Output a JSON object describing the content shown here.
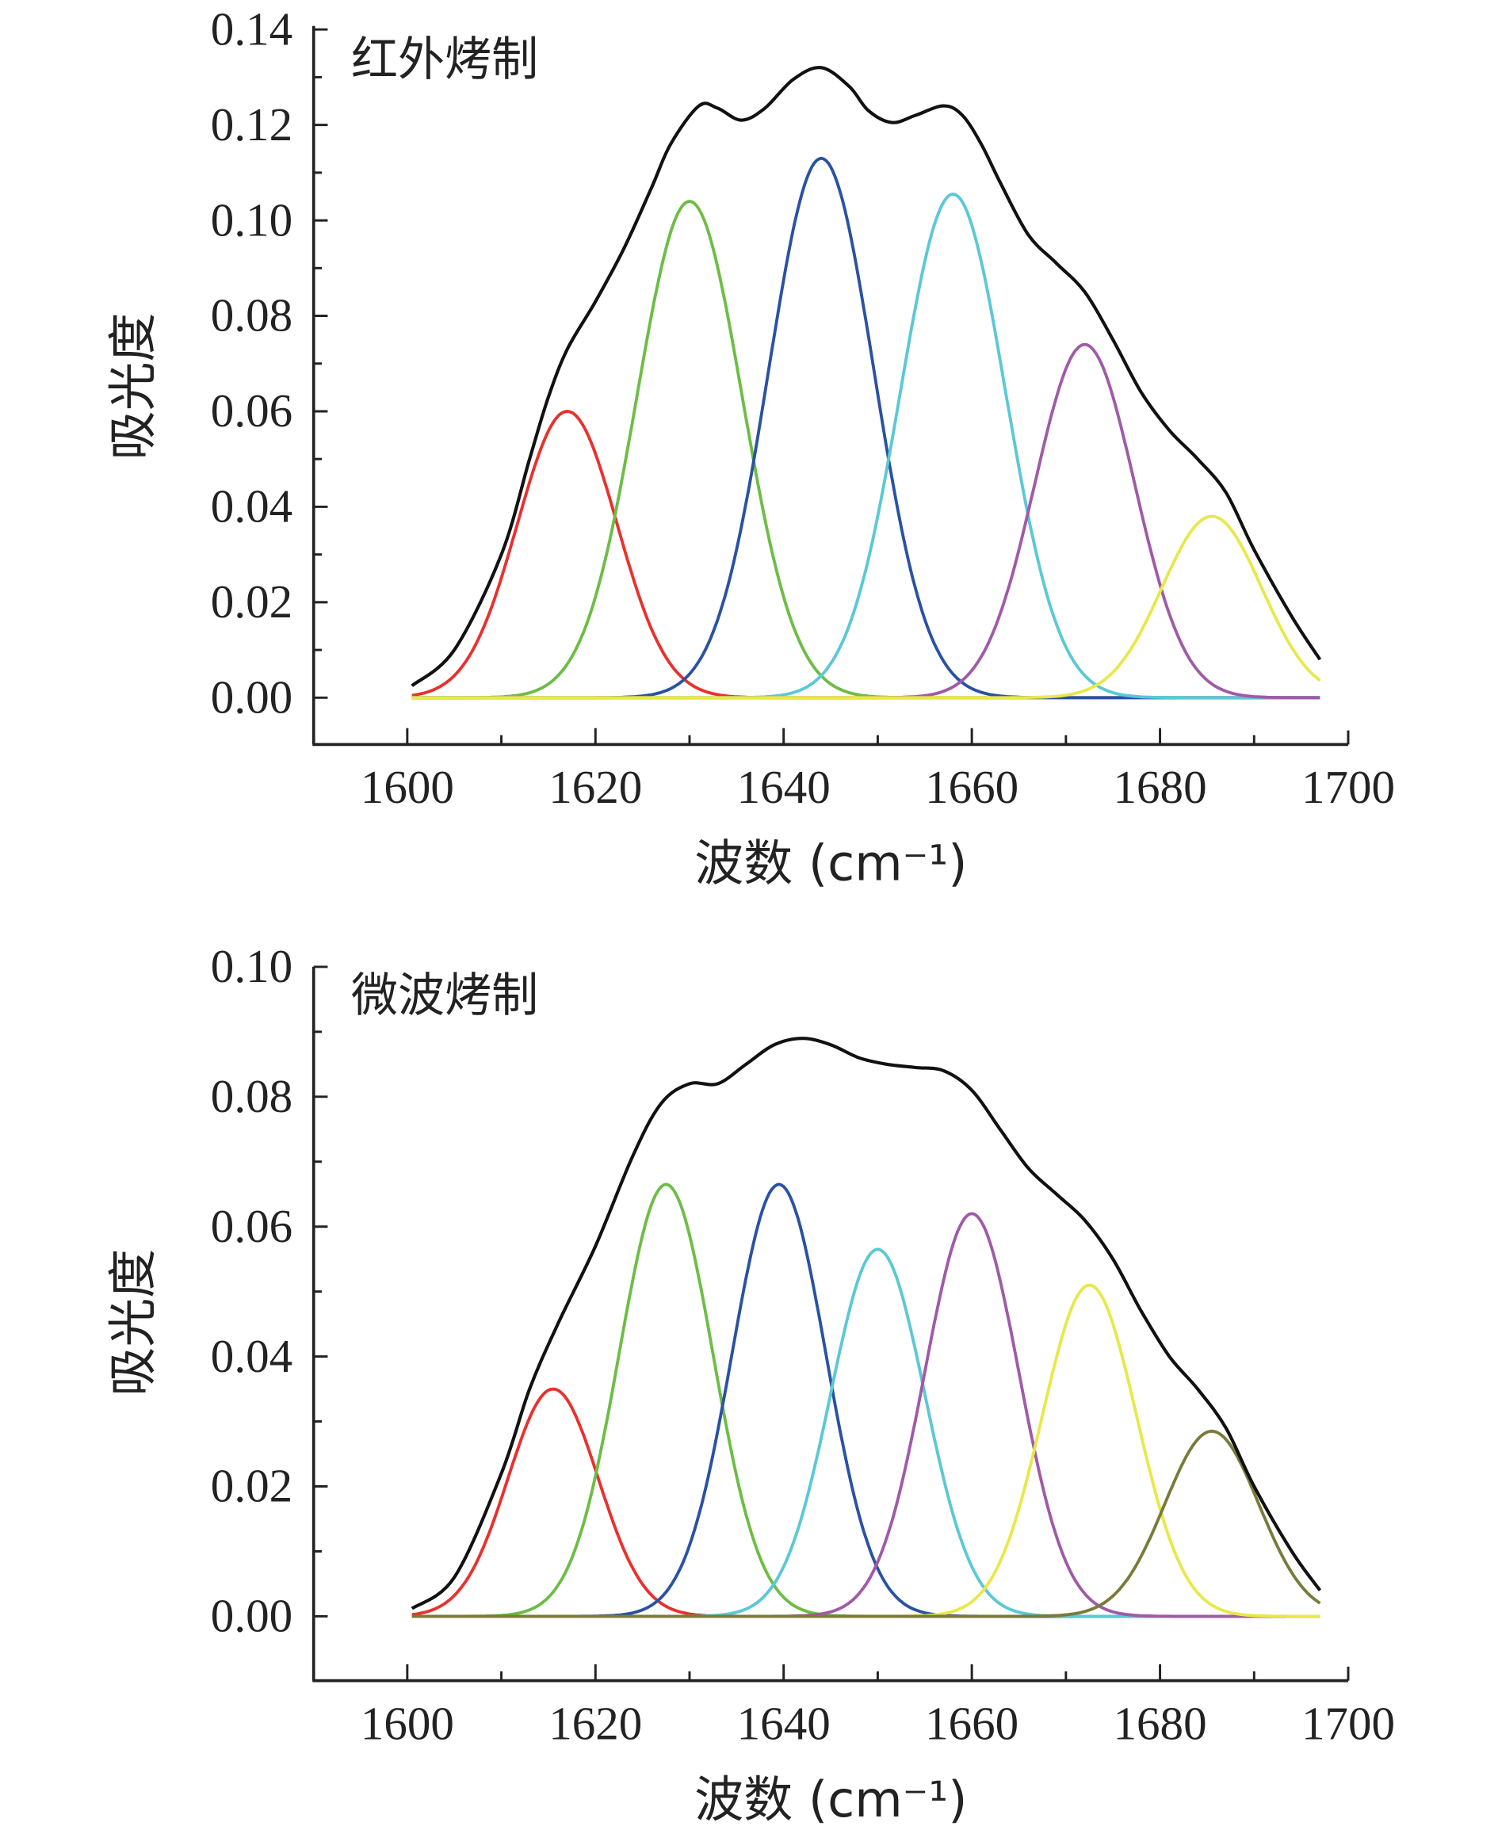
{
  "chart_data": [
    {
      "type": "line",
      "title": "红外烤制",
      "xlabel": "波数 (cm⁻¹)",
      "ylabel": "吸光度",
      "xlim": [
        1590,
        1700
      ],
      "ylim": [
        -0.01,
        0.14
      ],
      "xticks": [
        "1600",
        "1620",
        "1640",
        "1660",
        "1680",
        "1700"
      ],
      "yticks": [
        "0.00",
        "0.02",
        "0.04",
        "0.06",
        "0.08",
        "0.10",
        "0.12",
        "0.14"
      ],
      "xrange": [
        1600.5,
        1697
      ],
      "peaks": [
        {
          "name": "peak-1",
          "center": 1617,
          "height": 0.06,
          "sigma": 5.3,
          "color": "#e8312f"
        },
        {
          "name": "peak-2",
          "center": 1630,
          "height": 0.104,
          "sigma": 5.6,
          "color": "#6dbd45"
        },
        {
          "name": "peak-3",
          "center": 1644,
          "height": 0.113,
          "sigma": 5.6,
          "color": "#2a52a3"
        },
        {
          "name": "peak-4",
          "center": 1658,
          "height": 0.1055,
          "sigma": 5.6,
          "color": "#5bc8d6"
        },
        {
          "name": "peak-5",
          "center": 1672,
          "height": 0.074,
          "sigma": 5.3,
          "color": "#a05aa8"
        },
        {
          "name": "peak-6",
          "center": 1685.5,
          "height": 0.038,
          "sigma": 5.3,
          "color": "#e8e84a"
        }
      ],
      "envelope": {
        "color": "#111111",
        "x": [
          1600.5,
          1605,
          1610,
          1613,
          1615,
          1617,
          1620,
          1623,
          1626,
          1628,
          1631,
          1633,
          1635.5,
          1638,
          1641,
          1644,
          1647,
          1649,
          1651.5,
          1654,
          1657,
          1659,
          1661,
          1663,
          1666,
          1669,
          1672,
          1675,
          1678,
          1681,
          1684,
          1687,
          1690,
          1694,
          1697
        ],
        "y": [
          0.0025,
          0.01,
          0.03,
          0.05,
          0.063,
          0.073,
          0.083,
          0.094,
          0.107,
          0.116,
          0.124,
          0.1235,
          0.121,
          0.1235,
          0.1295,
          0.132,
          0.128,
          0.123,
          0.1205,
          0.122,
          0.124,
          0.122,
          0.116,
          0.108,
          0.097,
          0.091,
          0.085,
          0.075,
          0.064,
          0.056,
          0.05,
          0.043,
          0.031,
          0.017,
          0.008
        ]
      }
    },
    {
      "type": "line",
      "title": "微波烤制",
      "xlabel": "波数 (cm⁻¹)",
      "ylabel": "吸光度",
      "xlim": [
        1590,
        1700
      ],
      "ylim": [
        -0.01,
        0.1
      ],
      "xticks": [
        "1600",
        "1620",
        "1640",
        "1660",
        "1680",
        "1700"
      ],
      "yticks": [
        "0.00",
        "0.02",
        "0.04",
        "0.06",
        "0.08",
        "0.10"
      ],
      "xrange": [
        1600.5,
        1697
      ],
      "peaks": [
        {
          "name": "peak-1",
          "center": 1615.5,
          "height": 0.035,
          "sigma": 4.8,
          "color": "#e8312f"
        },
        {
          "name": "peak-2",
          "center": 1627.5,
          "height": 0.0665,
          "sigma": 5.0,
          "color": "#6dbd45"
        },
        {
          "name": "peak-3",
          "center": 1639.5,
          "height": 0.0665,
          "sigma": 5.0,
          "color": "#2a52a3"
        },
        {
          "name": "peak-4",
          "center": 1650,
          "height": 0.0565,
          "sigma": 5.0,
          "color": "#5bc8d6"
        },
        {
          "name": "peak-5",
          "center": 1660,
          "height": 0.062,
          "sigma": 5.0,
          "color": "#a05aa8"
        },
        {
          "name": "peak-6",
          "center": 1672.5,
          "height": 0.051,
          "sigma": 5.0,
          "color": "#e8e84a"
        },
        {
          "name": "peak-7",
          "center": 1685.5,
          "height": 0.0285,
          "sigma": 5.0,
          "color": "#7a7a3a"
        }
      ],
      "envelope": {
        "color": "#111111",
        "x": [
          1600.5,
          1605,
          1610,
          1613,
          1616,
          1620,
          1624,
          1627,
          1630,
          1633,
          1636,
          1639,
          1642,
          1645,
          1648,
          1651,
          1654,
          1657,
          1660,
          1663,
          1666,
          1669,
          1672,
          1675,
          1678,
          1681,
          1684,
          1687,
          1690,
          1694,
          1697
        ],
        "y": [
          0.0012,
          0.006,
          0.022,
          0.035,
          0.045,
          0.057,
          0.071,
          0.079,
          0.082,
          0.082,
          0.085,
          0.088,
          0.089,
          0.088,
          0.086,
          0.085,
          0.0845,
          0.084,
          0.081,
          0.075,
          0.069,
          0.065,
          0.061,
          0.055,
          0.047,
          0.04,
          0.035,
          0.029,
          0.02,
          0.01,
          0.004
        ]
      }
    }
  ]
}
